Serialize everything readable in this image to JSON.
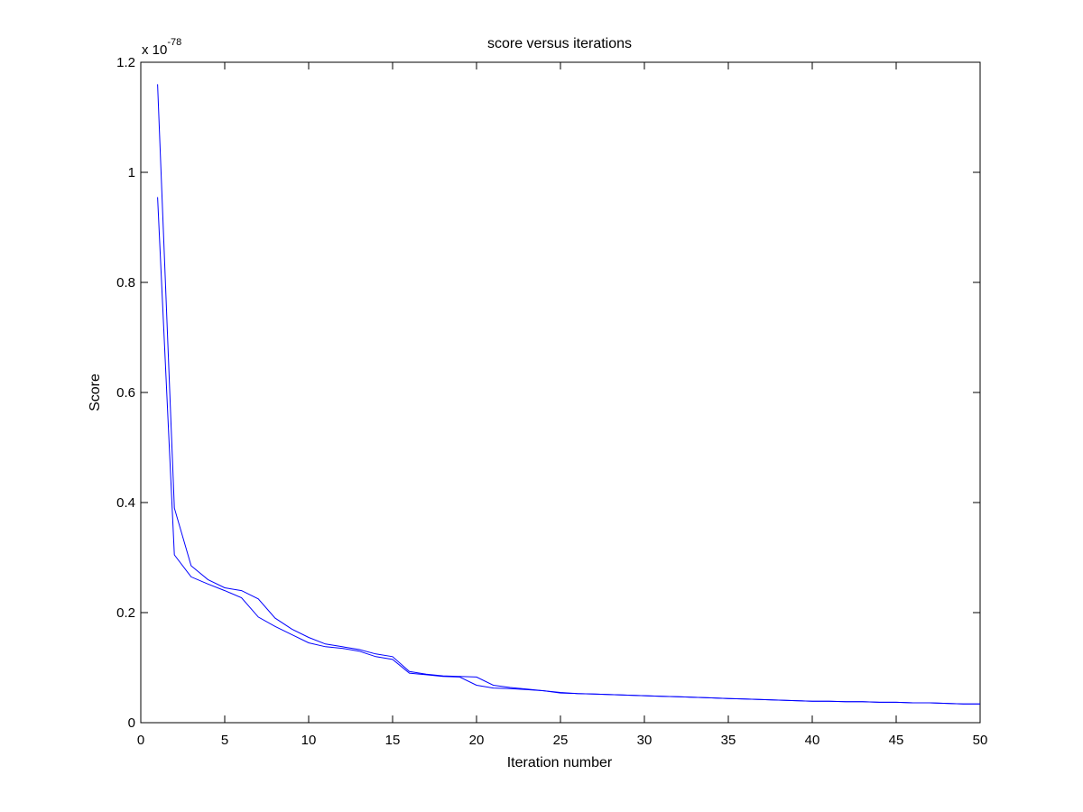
{
  "chart_data": {
    "type": "line",
    "title": "score versus iterations",
    "xlabel": "Iteration number",
    "ylabel": "Score",
    "exponent_label": {
      "base": "x 10",
      "power": "-78"
    },
    "xlim": [
      0,
      50
    ],
    "ylim": [
      0,
      1.2
    ],
    "xticks": [
      0,
      5,
      10,
      15,
      20,
      25,
      30,
      35,
      40,
      45,
      50
    ],
    "xtick_labels": [
      "0",
      "5",
      "10",
      "15",
      "20",
      "25",
      "30",
      "35",
      "40",
      "45",
      "50"
    ],
    "yticks": [
      0,
      0.2,
      0.4,
      0.6,
      0.8,
      1,
      1.2
    ],
    "ytick_labels": [
      "0",
      "0.2",
      "0.4",
      "0.6",
      "0.8",
      "1",
      "1.2"
    ],
    "grid": false,
    "line_color": "#0000ff",
    "series": [
      {
        "x": [
          1,
          2,
          3,
          4,
          5,
          6,
          7,
          8,
          9,
          10,
          11,
          12,
          13,
          14,
          15,
          16,
          17,
          18,
          19,
          20,
          21,
          22,
          23,
          24,
          25,
          26,
          27,
          28,
          29,
          30,
          31,
          32,
          33,
          34,
          35,
          36,
          37,
          38,
          39,
          40,
          41,
          42,
          43,
          44,
          45,
          46,
          47,
          48,
          49,
          50
        ],
        "values": [
          1.16,
          0.39,
          0.285,
          0.26,
          0.245,
          0.24,
          0.225,
          0.19,
          0.17,
          0.155,
          0.143,
          0.138,
          0.133,
          0.125,
          0.12,
          0.093,
          0.088,
          0.085,
          0.084,
          0.083,
          0.068,
          0.064,
          0.061,
          0.058,
          0.055,
          0.053,
          0.052,
          0.051,
          0.05,
          0.049,
          0.048,
          0.047,
          0.046,
          0.045,
          0.044,
          0.043,
          0.042,
          0.041,
          0.04,
          0.039,
          0.039,
          0.038,
          0.038,
          0.037,
          0.037,
          0.036,
          0.036,
          0.035,
          0.034,
          0.034
        ]
      },
      {
        "x": [
          1,
          2,
          3,
          4,
          5,
          6,
          7,
          8,
          9,
          10,
          11,
          12,
          13,
          14,
          15,
          16,
          17,
          18,
          19,
          20,
          21,
          22,
          23,
          24,
          25,
          26,
          27,
          28,
          29,
          30,
          31,
          32,
          33,
          34,
          35,
          36,
          37,
          38,
          39,
          40,
          41,
          42,
          43,
          44,
          45,
          46,
          47,
          48,
          49,
          50
        ],
        "values": [
          0.955,
          0.305,
          0.265,
          0.252,
          0.24,
          0.227,
          0.192,
          0.175,
          0.16,
          0.145,
          0.138,
          0.135,
          0.13,
          0.12,
          0.115,
          0.09,
          0.087,
          0.084,
          0.083,
          0.068,
          0.063,
          0.062,
          0.06,
          0.058,
          0.054,
          0.053,
          0.052,
          0.051,
          0.05,
          0.049,
          0.048,
          0.047,
          0.046,
          0.045,
          0.044,
          0.043,
          0.042,
          0.041,
          0.04,
          0.039,
          0.039,
          0.038,
          0.038,
          0.037,
          0.037,
          0.036,
          0.036,
          0.035,
          0.034,
          0.034
        ]
      }
    ]
  }
}
